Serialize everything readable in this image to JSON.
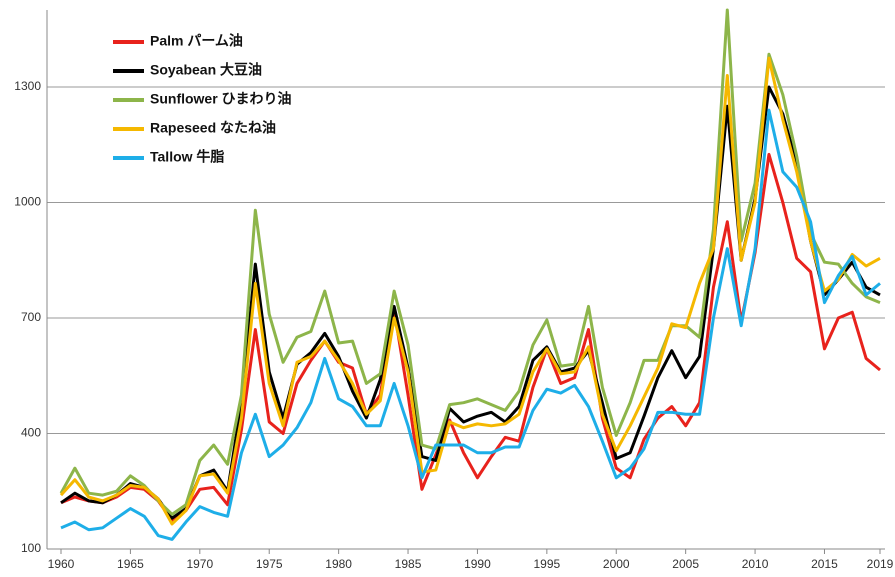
{
  "chart_data": {
    "type": "line",
    "x": [
      1960,
      1961,
      1962,
      1963,
      1964,
      1965,
      1966,
      1967,
      1968,
      1969,
      1970,
      1971,
      1972,
      1973,
      1974,
      1975,
      1976,
      1977,
      1978,
      1979,
      1980,
      1981,
      1982,
      1983,
      1984,
      1985,
      1986,
      1987,
      1988,
      1989,
      1990,
      1991,
      1992,
      1993,
      1994,
      1995,
      1996,
      1997,
      1998,
      1999,
      2000,
      2001,
      2002,
      2003,
      2004,
      2005,
      2006,
      2007,
      2008,
      2009,
      2010,
      2011,
      2012,
      2013,
      2014,
      2015,
      2016,
      2017,
      2018,
      2019
    ],
    "xlim": [
      1960,
      2019
    ],
    "xticks": [
      1960,
      1965,
      1970,
      1975,
      1980,
      1985,
      1990,
      1995,
      2000,
      2005,
      2010,
      2015,
      2019
    ],
    "ylim": [
      100,
      1500
    ],
    "yticks": [
      100,
      400,
      700,
      1000,
      1300
    ],
    "grid": true,
    "legend": "upper left",
    "series": [
      {
        "name": "Palm パーム油",
        "color": "#e8221c",
        "values": [
          220,
          235,
          225,
          220,
          235,
          260,
          255,
          225,
          175,
          200,
          255,
          260,
          215,
          410,
          670,
          430,
          400,
          530,
          590,
          640,
          585,
          570,
          450,
          500,
          720,
          500,
          255,
          345,
          435,
          350,
          285,
          340,
          390,
          380,
          520,
          620,
          530,
          545,
          670,
          440,
          310,
          285,
          385,
          440,
          470,
          420,
          480,
          780,
          950,
          690,
          870,
          1125,
          1000,
          855,
          820,
          620,
          700,
          715,
          595,
          565
        ]
      },
      {
        "name": "Soyabean 大豆油",
        "color": "#000000",
        "values": [
          220,
          245,
          225,
          220,
          240,
          270,
          260,
          230,
          180,
          205,
          290,
          305,
          250,
          480,
          840,
          560,
          440,
          580,
          610,
          660,
          600,
          510,
          440,
          540,
          730,
          570,
          340,
          330,
          465,
          430,
          445,
          455,
          430,
          470,
          590,
          625,
          560,
          570,
          615,
          480,
          335,
          350,
          445,
          545,
          615,
          545,
          600,
          880,
          1250,
          850,
          1010,
          1300,
          1230,
          1100,
          900,
          760,
          800,
          845,
          780,
          760
        ]
      },
      {
        "name": "Sunflower ひまわり油",
        "color": "#8db54a",
        "values": [
          245,
          310,
          245,
          240,
          250,
          290,
          265,
          225,
          190,
          215,
          330,
          370,
          320,
          500,
          980,
          710,
          585,
          650,
          665,
          770,
          635,
          640,
          530,
          555,
          770,
          630,
          370,
          360,
          475,
          480,
          490,
          475,
          460,
          510,
          630,
          695,
          575,
          580,
          730,
          520,
          395,
          480,
          590,
          590,
          680,
          680,
          650,
          930,
          1500,
          900,
          1050,
          1385,
          1280,
          1120,
          920,
          845,
          840,
          790,
          755,
          740
        ]
      },
      {
        "name": "Rapeseed なたね油",
        "color": "#f5b800",
        "values": [
          240,
          280,
          235,
          225,
          240,
          265,
          260,
          230,
          165,
          200,
          290,
          295,
          245,
          440,
          790,
          530,
          420,
          585,
          600,
          640,
          590,
          530,
          450,
          485,
          700,
          560,
          300,
          305,
          430,
          415,
          425,
          420,
          425,
          450,
          560,
          620,
          555,
          560,
          625,
          450,
          355,
          420,
          495,
          570,
          685,
          675,
          790,
          880,
          1330,
          850,
          1000,
          1375,
          1215,
          1080,
          900,
          770,
          800,
          865,
          835,
          855
        ]
      },
      {
        "name": "Tallow 牛脂",
        "color": "#1eaee8",
        "values": [
          155,
          170,
          150,
          155,
          180,
          205,
          185,
          135,
          125,
          170,
          210,
          195,
          185,
          350,
          450,
          340,
          370,
          415,
          480,
          595,
          490,
          470,
          420,
          420,
          530,
          420,
          285,
          370,
          370,
          370,
          350,
          350,
          365,
          365,
          460,
          515,
          505,
          525,
          470,
          380,
          285,
          310,
          360,
          455,
          455,
          450,
          450,
          700,
          880,
          680,
          880,
          1240,
          1080,
          1040,
          950,
          740,
          810,
          860,
          760,
          790
        ]
      }
    ]
  }
}
